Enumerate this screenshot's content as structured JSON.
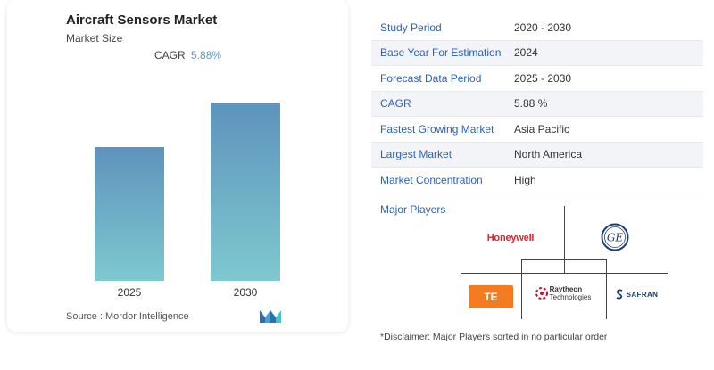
{
  "chart_card": {
    "title": "Aircraft Sensors Market",
    "subtitle": "Market Size",
    "cagr_label": "CAGR",
    "cagr_value": "5.88%",
    "source": "Source :  Mordor Intelligence"
  },
  "chart_data": {
    "type": "bar",
    "categories": [
      "2025",
      "2030"
    ],
    "values": [
      0.75,
      1.0
    ],
    "value_note": "relative bar heights (no numeric axis shown)",
    "title": "Aircraft Sensors Market",
    "subtitle": "Market Size",
    "xlabel": "",
    "ylabel": "",
    "grid": false,
    "colors": {
      "top": "#5e93bd",
      "bottom": "#7ec8cf"
    }
  },
  "info_table": [
    {
      "key": "Study Period",
      "value": "2020 - 2030"
    },
    {
      "key": "Base Year For Estimation",
      "value": "2024"
    },
    {
      "key": "Forecast Data Period",
      "value": "2025 - 2030"
    },
    {
      "key": "CAGR",
      "value": "5.88 %"
    },
    {
      "key": "Fastest Growing Market",
      "value": "Asia Pacific"
    },
    {
      "key": "Largest Market",
      "value": "North America"
    },
    {
      "key": "Market Concentration",
      "value": "High"
    }
  ],
  "players": {
    "label": "Major Players",
    "logos": {
      "honeywell": "Honeywell",
      "ge": "GE",
      "te": "TE",
      "raytheon_1": "Raytheon",
      "raytheon_2": "Technologies",
      "safran": "SAFRAN"
    }
  },
  "disclaimer": "*Disclaimer: Major Players sorted in no particular order",
  "colors": {
    "accent": "#2b62b6",
    "te_orange": "#f47b20",
    "honeywell_red": "#d9262f"
  }
}
